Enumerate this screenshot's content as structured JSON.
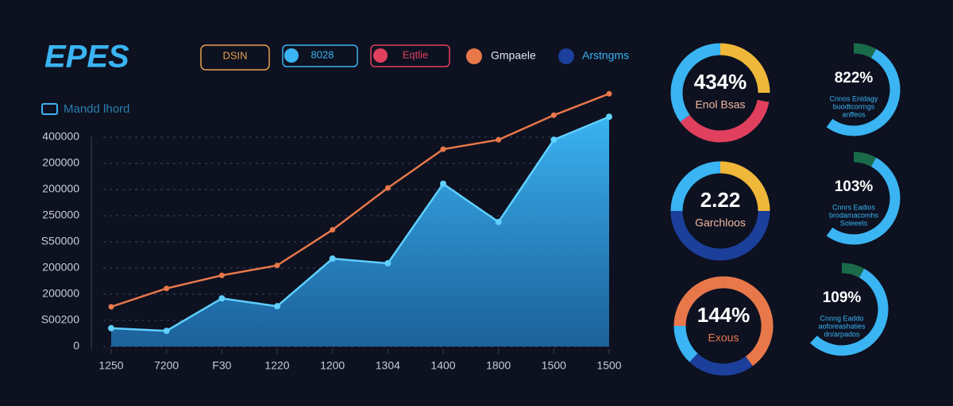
{
  "header": {
    "title": "EPES",
    "buttons": [
      "DSIN",
      "8028",
      "Eqtlie"
    ],
    "legend": [
      "Gmpaele",
      "Arstngms"
    ]
  },
  "chart_data": {
    "type": "area",
    "subtitle": "Mandd lhord",
    "categories": [
      "1250",
      "7200",
      "F30",
      "1220",
      "1200",
      "1304",
      "1400",
      "1800",
      "1500",
      "1500"
    ],
    "series": [
      {
        "type": "area",
        "color": "#3ab4f2",
        "values": [
          35000,
          30000,
          92000,
          77000,
          168000,
          159000,
          311000,
          238000,
          395000,
          439000
        ]
      },
      {
        "type": "line",
        "color": "#e8784a",
        "values": [
          76000,
          111000,
          136000,
          155000,
          223000,
          303000,
          377000,
          395000,
          442000,
          483000
        ]
      }
    ],
    "ylim": [
      0,
      490000
    ],
    "yticks": [
      0,
      {
        "value": 50000,
        "label": "S00200"
      },
      {
        "value": 100000,
        "label": "200000"
      },
      {
        "value": 150000,
        "label": "200000"
      },
      {
        "value": 200000,
        "label": "S50000"
      },
      {
        "value": 250000,
        "label": "250000"
      },
      {
        "value": 300000,
        "label": "200000"
      },
      {
        "value": 350000,
        "label": "200000"
      },
      400000
    ],
    "grid": true
  },
  "gauges": [
    {
      "value": "434%",
      "caption": [
        "Enol Bsas"
      ]
    },
    {
      "value": "822%",
      "caption": [
        "Cnnos Enidagy",
        "buodtcorrngs",
        "anffeos"
      ]
    },
    {
      "value": "2.22",
      "caption": [
        "Garchloos"
      ]
    },
    {
      "value": "103%",
      "caption": [
        "Cnnrs Eadios",
        "brodamacomhs",
        "Soleeels"
      ]
    },
    {
      "value": "144%",
      "caption": [
        "Exous"
      ]
    },
    {
      "value": "109%",
      "caption": [
        "Cnnng Eaddo",
        "aoforeashaties",
        "dn/arpados"
      ]
    }
  ]
}
